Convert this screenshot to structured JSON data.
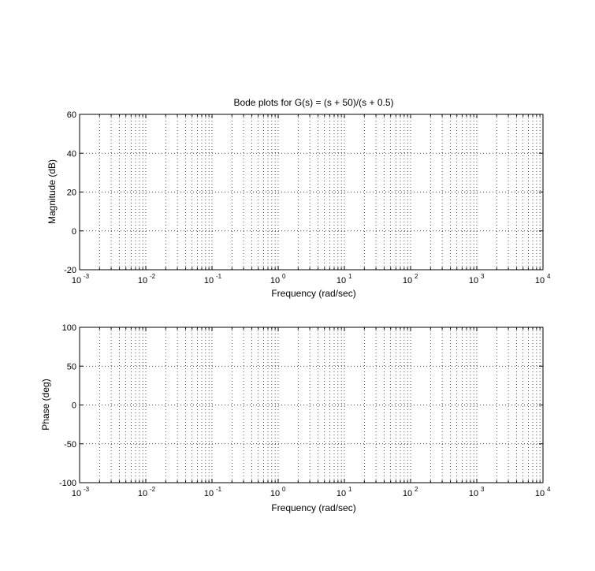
{
  "chart_data": [
    {
      "type": "line",
      "title": "Bode plots for G(s) = (s + 50)/(s + 0.5)",
      "xlabel": "Frequency (rad/sec)",
      "ylabel": "Magnitude (dB)",
      "x_scale": "log",
      "xlim": [
        0.001,
        10000
      ],
      "ylim": [
        -20,
        60
      ],
      "x_ticks": [
        {
          "base": "10",
          "exp": "-3"
        },
        {
          "base": "10",
          "exp": "-2"
        },
        {
          "base": "10",
          "exp": "-1"
        },
        {
          "base": "10",
          "exp": "0"
        },
        {
          "base": "10",
          "exp": "1"
        },
        {
          "base": "10",
          "exp": "2"
        },
        {
          "base": "10",
          "exp": "3"
        },
        {
          "base": "10",
          "exp": "4"
        }
      ],
      "y_ticks": [
        "-20",
        "0",
        "20",
        "40",
        "60"
      ],
      "grid": true,
      "series": []
    },
    {
      "type": "line",
      "title": "",
      "xlabel": "Frequency (rad/sec)",
      "ylabel": "Phase (deg)",
      "x_scale": "log",
      "xlim": [
        0.001,
        10000
      ],
      "ylim": [
        -100,
        100
      ],
      "x_ticks": [
        {
          "base": "10",
          "exp": "-3"
        },
        {
          "base": "10",
          "exp": "-2"
        },
        {
          "base": "10",
          "exp": "-1"
        },
        {
          "base": "10",
          "exp": "0"
        },
        {
          "base": "10",
          "exp": "1"
        },
        {
          "base": "10",
          "exp": "2"
        },
        {
          "base": "10",
          "exp": "3"
        },
        {
          "base": "10",
          "exp": "4"
        }
      ],
      "y_ticks": [
        "-100",
        "-50",
        "0",
        "50",
        "100"
      ],
      "grid": true,
      "series": []
    }
  ]
}
